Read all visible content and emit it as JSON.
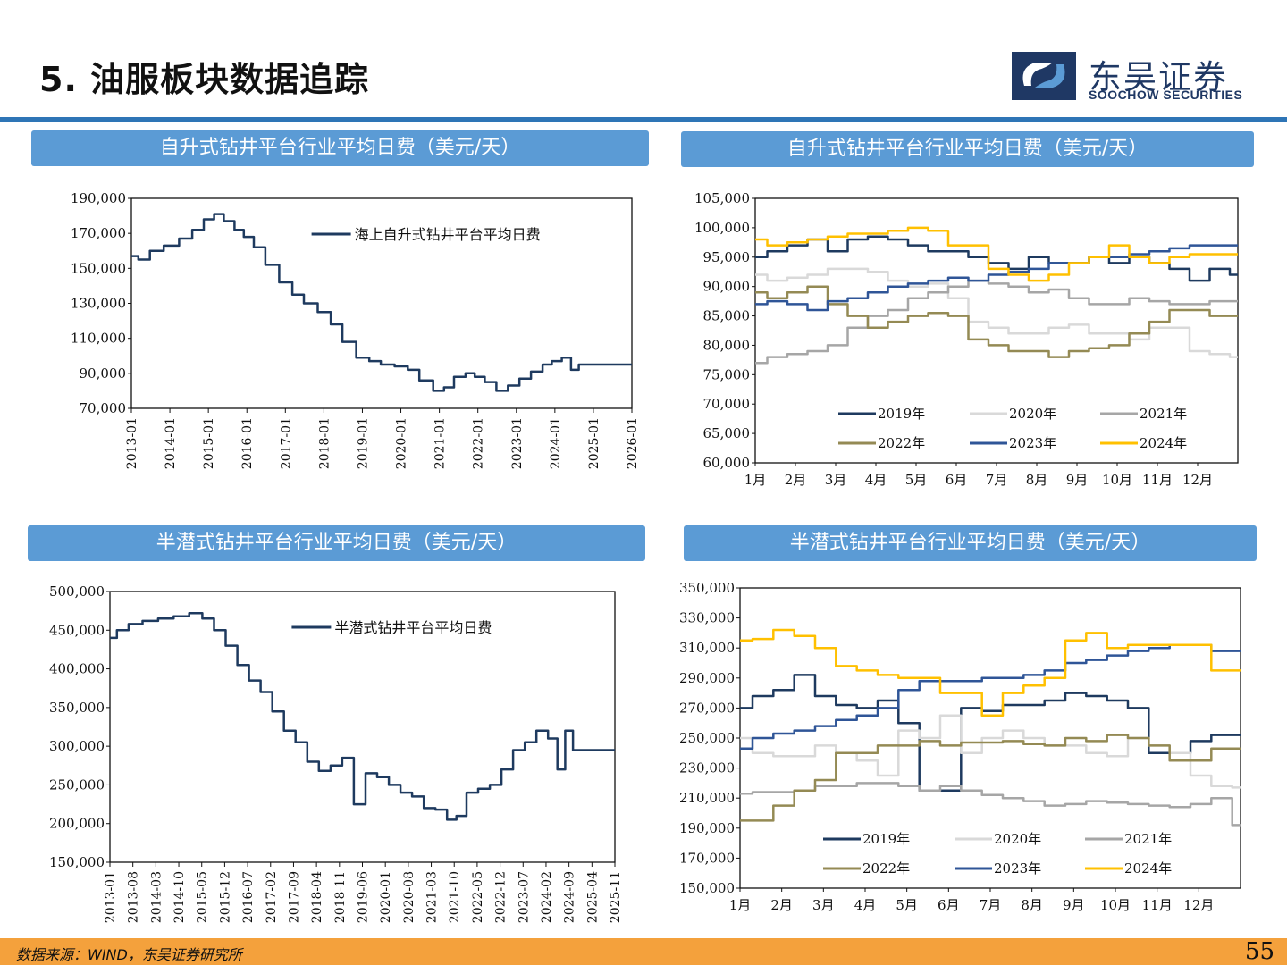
{
  "page": {
    "title": "5. 油服板块数据追踪",
    "page_number": "55",
    "source": "数据来源：WIND，东吴证券研究所"
  },
  "logo": {
    "cn": "东吴证券",
    "en": "SOOCHOW SECURITIES"
  },
  "colors": {
    "navy": "#1f3864",
    "series_main": "#1e3a5f",
    "header_bg": "#5b9bd5",
    "rule": "#2e75b6",
    "footer": "#f4a13c",
    "y2019": "#1e3a5f",
    "y2020": "#d9d9d9",
    "y2021": "#a6a6a6",
    "y2022": "#948a54",
    "y2023": "#2f5597",
    "y2024": "#ffc000"
  },
  "chart_data": [
    {
      "id": "jackup_hist",
      "type": "line",
      "title": "自升式钻井平台行业平均日费（美元/天）",
      "legend": [
        "海上自升式钻井平台平均日费"
      ],
      "legend_position": "top-right",
      "y_ticks": [
        "190,000",
        "170,000",
        "150,000",
        "130,000",
        "110,000",
        "90,000",
        "70,000"
      ],
      "ylim": [
        70000,
        190000
      ],
      "x_ticks": [
        "2013-01",
        "2014-01",
        "2015-01",
        "2016-01",
        "2017-01",
        "2018-01",
        "2019-01",
        "2020-01",
        "2021-01",
        "2022-01",
        "2023-01",
        "2024-01",
        "2025-01",
        "2026-01"
      ],
      "xlim": [
        2013.0,
        2026.0
      ],
      "series": [
        {
          "name": "海上自升式钻井平台平均日费",
          "x": [
            2013.0,
            2013.3,
            2013.6,
            2014.0,
            2014.4,
            2014.7,
            2015.0,
            2015.25,
            2015.5,
            2015.8,
            2016.0,
            2016.3,
            2016.6,
            2017.0,
            2017.3,
            2017.6,
            2018.0,
            2018.3,
            2018.6,
            2019.0,
            2019.3,
            2019.6,
            2020.0,
            2020.3,
            2020.6,
            2021.0,
            2021.2,
            2021.5,
            2021.8,
            2022.0,
            2022.3,
            2022.6,
            2022.9,
            2023.2,
            2023.5,
            2023.8,
            2024.0,
            2024.3,
            2024.5,
            2024.7,
            2025.0,
            2025.5,
            2026.0
          ],
          "y": [
            157000,
            155000,
            160000,
            163000,
            167000,
            172000,
            178000,
            181000,
            177000,
            172000,
            168000,
            162000,
            152000,
            142000,
            135000,
            130000,
            125000,
            118000,
            108000,
            99000,
            97000,
            95000,
            94000,
            92000,
            86000,
            80000,
            82000,
            88000,
            90000,
            88000,
            85000,
            80000,
            83000,
            87000,
            91000,
            95000,
            97000,
            99000,
            92000,
            95000,
            95000,
            95000,
            95000
          ]
        }
      ]
    },
    {
      "id": "jackup_yearly",
      "type": "line",
      "title": "自升式钻井平台行业平均日费（美元/天）",
      "y_ticks": [
        "105,000",
        "100,000",
        "95,000",
        "90,000",
        "85,000",
        "80,000",
        "75,000",
        "70,000",
        "65,000",
        "60,000"
      ],
      "ylim": [
        60000,
        105000
      ],
      "x_ticks": [
        "1月",
        "2月",
        "3月",
        "4月",
        "5月",
        "6月",
        "7月",
        "8月",
        "9月",
        "10月",
        "11月",
        "12月"
      ],
      "xlim": [
        1,
        13
      ],
      "legend_position": "bottom-inside",
      "series": [
        {
          "name": "2019年",
          "x": [
            1,
            1.5,
            2,
            2.5,
            3,
            3.5,
            4,
            4.5,
            5,
            5.5,
            6,
            6.5,
            7,
            7.5,
            8,
            8.5,
            9,
            9.5,
            10,
            10.5,
            11,
            11.5,
            12,
            12.5,
            13
          ],
          "y": [
            95000,
            96000,
            97000,
            98000,
            96000,
            98000,
            98500,
            98000,
            97000,
            96000,
            96000,
            95000,
            94000,
            93000,
            95000,
            94000,
            94000,
            95000,
            94000,
            95000,
            94000,
            93000,
            91000,
            93000,
            92000
          ]
        },
        {
          "name": "2020年",
          "x": [
            1,
            1.5,
            2,
            2.5,
            3,
            3.5,
            4,
            4.5,
            5,
            5.5,
            6,
            6.5,
            7,
            7.5,
            8,
            8.5,
            9,
            9.5,
            10,
            10.5,
            11,
            11.5,
            12,
            12.5,
            13
          ],
          "y": [
            92000,
            91000,
            91500,
            92000,
            93000,
            93000,
            92500,
            91000,
            90000,
            90500,
            88000,
            84000,
            83000,
            82000,
            82000,
            83000,
            83500,
            82000,
            82000,
            81000,
            83000,
            83000,
            79000,
            78500,
            78000
          ]
        },
        {
          "name": "2021年",
          "x": [
            1,
            1.5,
            2,
            2.5,
            3,
            3.5,
            4,
            4.5,
            5,
            5.5,
            6,
            6.5,
            7,
            7.5,
            8,
            8.5,
            9,
            9.5,
            10,
            10.5,
            11,
            11.5,
            12,
            12.5,
            13
          ],
          "y": [
            77000,
            78000,
            78500,
            79000,
            80000,
            83000,
            85000,
            86000,
            88000,
            89000,
            90000,
            91000,
            90500,
            90000,
            89000,
            89500,
            88000,
            87000,
            87000,
            88000,
            87500,
            87000,
            87000,
            87500,
            87500
          ]
        },
        {
          "name": "2022年",
          "x": [
            1,
            1.5,
            2,
            2.5,
            3,
            3.5,
            4,
            4.5,
            5,
            5.5,
            6,
            6.5,
            7,
            7.5,
            8,
            8.5,
            9,
            9.5,
            10,
            10.5,
            11,
            11.5,
            12,
            12.5,
            13
          ],
          "y": [
            89000,
            88000,
            89000,
            90000,
            87000,
            85000,
            83000,
            84000,
            85000,
            85500,
            85000,
            81000,
            80000,
            79000,
            79000,
            78000,
            79000,
            79500,
            80000,
            82000,
            84000,
            86000,
            86000,
            85000,
            85000
          ]
        },
        {
          "name": "2023年",
          "x": [
            1,
            1.5,
            2,
            2.5,
            3,
            3.5,
            4,
            4.5,
            5,
            5.5,
            6,
            6.5,
            7,
            7.5,
            8,
            8.5,
            9,
            9.5,
            10,
            10.5,
            11,
            11.5,
            12,
            12.5,
            13
          ],
          "y": [
            87000,
            87500,
            87000,
            86000,
            87500,
            88000,
            89000,
            90000,
            90500,
            91000,
            91500,
            91000,
            92000,
            92500,
            93000,
            94000,
            94000,
            95000,
            95000,
            95500,
            96000,
            96500,
            97000,
            97000,
            97000
          ]
        },
        {
          "name": "2024年",
          "x": [
            1,
            1.5,
            2,
            2.5,
            3,
            3.5,
            4,
            4.5,
            5,
            5.5,
            6,
            6.5,
            7,
            7.5,
            8,
            8.5,
            9,
            9.5,
            10,
            10.5,
            11,
            11.5,
            12,
            12.5,
            13
          ],
          "y": [
            98000,
            97000,
            97500,
            98000,
            98500,
            99000,
            99000,
            99500,
            100000,
            99500,
            97000,
            97000,
            93000,
            92000,
            91000,
            92000,
            94000,
            95000,
            97000,
            95000,
            94000,
            95000,
            95500,
            95500,
            95500
          ]
        }
      ]
    },
    {
      "id": "semisub_hist",
      "type": "line",
      "title": "半潜式钻井平台行业平均日费（美元/天）",
      "legend": [
        "半潜式钻井平台平均日费"
      ],
      "legend_position": "top-right",
      "y_ticks": [
        "500,000",
        "450,000",
        "400,000",
        "350,000",
        "300,000",
        "250,000",
        "200,000",
        "150,000"
      ],
      "ylim": [
        150000,
        500000
      ],
      "x_ticks": [
        "2013-01",
        "2013-08",
        "2014-03",
        "2014-10",
        "2015-05",
        "2015-12",
        "2016-07",
        "2017-02",
        "2017-09",
        "2018-04",
        "2018-11",
        "2019-06",
        "2020-01",
        "2020-08",
        "2021-03",
        "2021-10",
        "2022-05",
        "2022-12",
        "2023-07",
        "2024-02",
        "2024-09",
        "2025-04",
        "2025-11"
      ],
      "xlim": [
        2013.0,
        2026.0
      ],
      "series": [
        {
          "name": "半潜式钻井平台平均日费",
          "x": [
            2013.0,
            2013.3,
            2013.6,
            2014.0,
            2014.4,
            2014.8,
            2015.2,
            2015.5,
            2015.8,
            2016.1,
            2016.4,
            2016.7,
            2017.0,
            2017.3,
            2017.6,
            2017.9,
            2018.2,
            2018.5,
            2018.8,
            2019.1,
            2019.4,
            2019.7,
            2020.0,
            2020.3,
            2020.6,
            2020.9,
            2021.2,
            2021.5,
            2021.8,
            2022.0,
            2022.3,
            2022.6,
            2022.9,
            2023.2,
            2023.5,
            2023.8,
            2024.1,
            2024.4,
            2024.6,
            2024.8,
            2025.0,
            2025.5,
            2026.0
          ],
          "y": [
            440000,
            450000,
            458000,
            462000,
            465000,
            468000,
            472000,
            465000,
            450000,
            430000,
            405000,
            385000,
            370000,
            345000,
            320000,
            305000,
            280000,
            268000,
            275000,
            285000,
            225000,
            265000,
            260000,
            250000,
            240000,
            235000,
            220000,
            218000,
            205000,
            210000,
            240000,
            245000,
            250000,
            270000,
            295000,
            305000,
            320000,
            310000,
            270000,
            320000,
            295000,
            295000,
            295000
          ]
        }
      ]
    },
    {
      "id": "semisub_yearly",
      "type": "line",
      "title": "半潜式钻井平台行业平均日费（美元/天）",
      "y_ticks": [
        "350,000",
        "330,000",
        "310,000",
        "290,000",
        "270,000",
        "250,000",
        "230,000",
        "210,000",
        "190,000",
        "170,000",
        "150,000"
      ],
      "ylim": [
        150000,
        350000
      ],
      "x_ticks": [
        "1月",
        "2月",
        "3月",
        "4月",
        "5月",
        "6月",
        "7月",
        "8月",
        "9月",
        "10月",
        "11月",
        "12月"
      ],
      "xlim": [
        1,
        13
      ],
      "legend_position": "bottom-inside",
      "series": [
        {
          "name": "2019年",
          "x": [
            1,
            1.5,
            2,
            2.5,
            3,
            3.5,
            4,
            4.5,
            5,
            5.5,
            6,
            6.5,
            7,
            7.5,
            8,
            8.5,
            9,
            9.5,
            10,
            10.5,
            11,
            11.5,
            12,
            12.5,
            13
          ],
          "y": [
            270000,
            278000,
            282000,
            292000,
            278000,
            272000,
            270000,
            275000,
            260000,
            215000,
            215000,
            270000,
            268000,
            272000,
            272000,
            275000,
            280000,
            278000,
            275000,
            270000,
            240000,
            240000,
            248000,
            252000,
            252000
          ]
        },
        {
          "name": "2020年",
          "x": [
            1,
            1.5,
            2,
            2.5,
            3,
            3.5,
            4,
            4.5,
            5,
            5.5,
            6,
            6.5,
            7,
            7.5,
            8,
            8.5,
            9,
            9.5,
            10,
            10.5,
            11,
            11.5,
            12,
            12.5,
            13
          ],
          "y": [
            250000,
            240000,
            238000,
            238000,
            245000,
            240000,
            235000,
            225000,
            255000,
            250000,
            265000,
            240000,
            250000,
            255000,
            250000,
            245000,
            245000,
            240000,
            238000,
            250000,
            245000,
            240000,
            225000,
            218000,
            217000
          ]
        },
        {
          "name": "2021年",
          "x": [
            1,
            1.5,
            2,
            2.5,
            3,
            3.5,
            4,
            4.5,
            5,
            5.5,
            6,
            6.5,
            7,
            7.5,
            8,
            8.5,
            9,
            9.5,
            10,
            10.5,
            11,
            11.5,
            12,
            12.5,
            13
          ],
          "y": [
            213000,
            214000,
            214000,
            215000,
            218000,
            218000,
            220000,
            220000,
            218000,
            215000,
            218000,
            215000,
            212000,
            210000,
            208000,
            205000,
            206000,
            208000,
            207000,
            206000,
            205000,
            204000,
            206000,
            210000,
            192000
          ]
        },
        {
          "name": "2022年",
          "x": [
            1,
            1.5,
            2,
            2.5,
            3,
            3.5,
            4,
            4.5,
            5,
            5.5,
            6,
            6.5,
            7,
            7.5,
            8,
            8.5,
            9,
            9.5,
            10,
            10.5,
            11,
            11.5,
            12,
            12.5,
            13
          ],
          "y": [
            195000,
            195000,
            205000,
            215000,
            222000,
            240000,
            240000,
            245000,
            245000,
            248000,
            245000,
            247000,
            247000,
            248000,
            246000,
            245000,
            250000,
            248000,
            252000,
            250000,
            245000,
            235000,
            235000,
            243000,
            243000
          ]
        },
        {
          "name": "2023年",
          "x": [
            1,
            1.5,
            2,
            2.5,
            3,
            3.5,
            4,
            4.5,
            5,
            5.5,
            6,
            6.5,
            7,
            7.5,
            8,
            8.5,
            9,
            9.5,
            10,
            10.5,
            11,
            11.5,
            12,
            12.5,
            13
          ],
          "y": [
            243000,
            250000,
            253000,
            255000,
            258000,
            262000,
            265000,
            270000,
            282000,
            288000,
            288000,
            288000,
            290000,
            290000,
            292000,
            295000,
            300000,
            302000,
            305000,
            308000,
            310000,
            312000,
            312000,
            308000,
            308000
          ]
        },
        {
          "name": "2024年",
          "x": [
            1,
            1.5,
            2,
            2.5,
            3,
            3.5,
            4,
            4.5,
            5,
            5.5,
            6,
            6.5,
            7,
            7.5,
            8,
            8.5,
            9,
            9.5,
            10,
            10.5,
            11,
            11.5,
            12,
            12.5,
            13
          ],
          "y": [
            315000,
            316000,
            322000,
            318000,
            310000,
            298000,
            295000,
            292000,
            290000,
            290000,
            280000,
            280000,
            265000,
            280000,
            285000,
            290000,
            315000,
            320000,
            310000,
            312000,
            312000,
            312000,
            312000,
            295000,
            295000
          ]
        }
      ]
    }
  ]
}
